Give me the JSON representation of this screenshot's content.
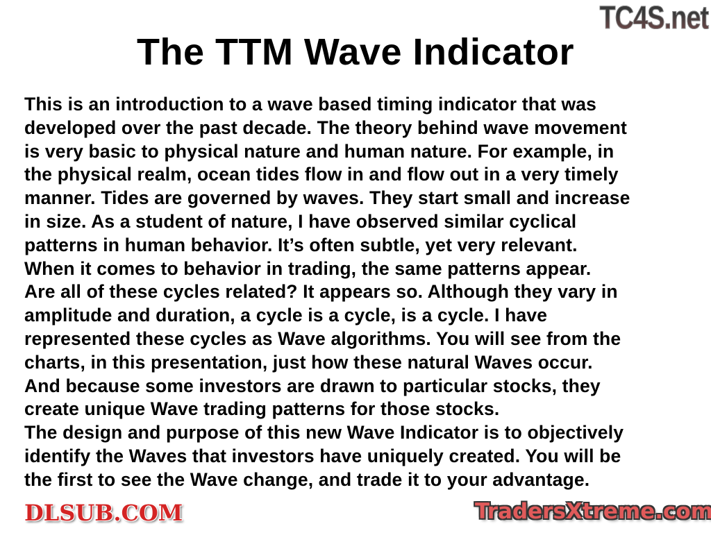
{
  "slide": {
    "title": "The TTM Wave Indicator",
    "body_lines": [
      "This is an introduction to a wave based timing indicator that was",
      "developed over the past decade. The theory behind wave movement",
      "is very basic to physical nature and human nature. For example, in",
      "the physical realm, ocean tides flow in and flow out in a very timely",
      "manner. Tides are governed by waves. They start small and increase",
      "in size. As a student of nature, I have observed similar cyclical",
      "patterns in human behavior. It’s often subtle, yet very relevant.",
      "When it comes to behavior in trading, the same patterns appear.",
      "Are all of these cycles related? It appears so. Although they vary in",
      "amplitude and duration, a cycle is a cycle, is a cycle. I have",
      "represented these cycles as Wave algorithms. You will see from the",
      "charts, in this presentation, just how these natural Waves occur.",
      "And because some investors are drawn to particular stocks, they",
      "create unique Wave trading patterns for those stocks.",
      "The design and purpose of this new Wave Indicator is to objectively",
      "identify the Waves that investors have uniquely created. You will be",
      "the first to see the Wave change, and trade it to your advantage."
    ]
  },
  "watermarks": {
    "top_right": "TC4S.net",
    "middle": "DLSUB.COM",
    "bottom_right": "TradersXtreme.com"
  }
}
